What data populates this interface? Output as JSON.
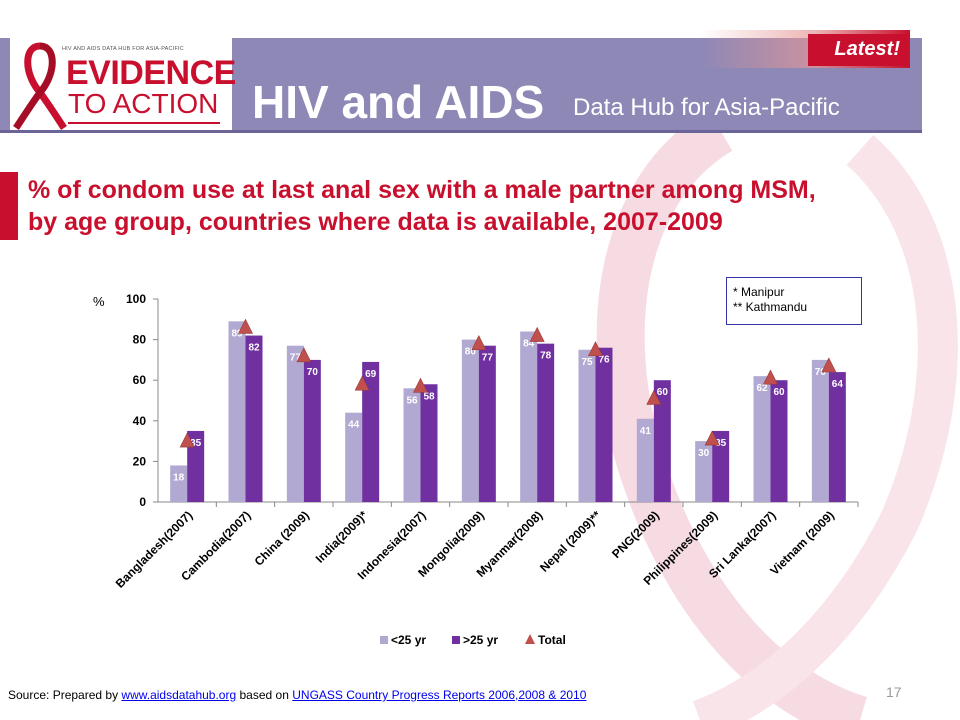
{
  "header": {
    "logo_small_text": "HIV AND AIDS DATA HUB FOR ASIA-PACIFIC",
    "logo_evidence": "EVIDENCE",
    "logo_action": "TO ACTION",
    "title": "HIV and AIDS",
    "subtitle": "Data Hub for Asia-Pacific",
    "latest": "Latest!"
  },
  "notes": [
    "* Manipur",
    "** Kathmandu"
  ],
  "source": {
    "prefix": "Source: Prepared by",
    "link1": "www.aidsdatahub.org",
    "middle": "based on",
    "link2": "UNGASS Country Progress Reports  2006,2008 & 2010"
  },
  "page_number": "17",
  "colors": {
    "under25": "#b2a9d2",
    "over25": "#7030a0",
    "total": "#c0504d",
    "title": "#c8102e",
    "header": "#8d88b6"
  },
  "chart_data": {
    "type": "bar",
    "title": "% of condom use at last anal sex with a male partner among MSM, by age group, countries where data is available, 2007-2009",
    "ylabel": "%",
    "ylim": [
      0,
      100
    ],
    "yticks": [
      "0",
      "20",
      "40",
      "60",
      "80",
      "100"
    ],
    "categories": [
      "Bangladesh(2007)",
      "Cambodia(2007)",
      "China (2009)",
      "India(2009)*",
      "Indonesia(2007)",
      "Mongolia(2009)",
      "Myanmar(2008)",
      "Nepal (2009)**",
      "PNG(2009)",
      "Philippines(2009)",
      "Sri Lanka(2007)",
      "Vietnam (2009)"
    ],
    "series": [
      {
        "name": "<25 yr",
        "kind": "bar",
        "color": "#b2a9d2",
        "values": [
          18,
          89,
          77,
          44,
          56,
          80,
          84,
          75,
          41,
          30,
          62,
          70
        ]
      },
      {
        "name": ">25 yr",
        "kind": "bar",
        "color": "#7030a0",
        "values": [
          35,
          82,
          70,
          69,
          58,
          77,
          78,
          76,
          60,
          35,
          60,
          64
        ]
      },
      {
        "name": "Total",
        "kind": "marker",
        "color": "#c0504d",
        "values": [
          30,
          86,
          72,
          58,
          57,
          78,
          82,
          75,
          51,
          31,
          61,
          67
        ]
      }
    ],
    "labels_visible": {
      "<25 yr": [
        "18",
        "89",
        "77",
        "44",
        "56",
        "80",
        "84",
        "75",
        "41",
        "30",
        "62",
        "70"
      ],
      ">25 yr": [
        "35",
        "82",
        "70",
        "69",
        "58",
        "77",
        "78",
        "76",
        "60",
        "35",
        "60",
        "64"
      ]
    },
    "grid": false,
    "legend_position": "bottom"
  }
}
